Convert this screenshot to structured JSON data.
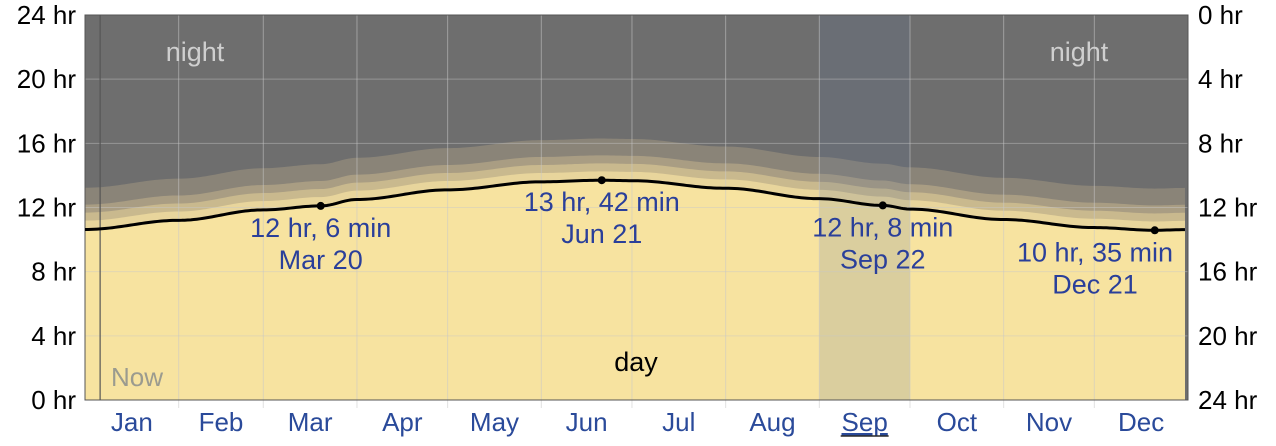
{
  "chart_data": {
    "type": "area",
    "title": "",
    "xlabel": "",
    "ylabel": "",
    "months": [
      "Jan",
      "Feb",
      "Mar",
      "Apr",
      "May",
      "Jun",
      "Jul",
      "Aug",
      "Sep",
      "Oct",
      "Nov",
      "Dec"
    ],
    "highlighted_month": "Sep",
    "ylim": [
      0,
      24
    ],
    "left_ticks": [
      "0 hr",
      "4 hr",
      "8 hr",
      "12 hr",
      "16 hr",
      "20 hr",
      "24 hr"
    ],
    "left_tick_values": [
      0,
      4,
      8,
      12,
      16,
      20,
      24
    ],
    "right_ticks": [
      "24 hr",
      "20 hr",
      "16 hr",
      "12 hr",
      "8 hr",
      "4 hr",
      "0 hr"
    ],
    "right_tick_values": [
      0,
      4,
      8,
      12,
      16,
      20,
      24
    ],
    "series": [
      {
        "day_of_year": [
          1,
          32,
          60,
          79,
          91,
          121,
          152,
          172,
          182,
          213,
          244,
          265,
          274,
          305,
          335,
          355,
          365
        ],
        "hours": [
          10.63,
          11.2,
          11.85,
          12.1,
          12.5,
          13.1,
          13.6,
          13.7,
          13.67,
          13.2,
          12.55,
          12.13,
          11.9,
          11.25,
          10.75,
          10.58,
          10.62
        ]
      }
    ],
    "twilight_band_hours": [
      0.55,
      1.05,
      1.55,
      2.6
    ],
    "annotations": [
      {
        "line1": "12 hr, 6 min",
        "line2": "Mar 20",
        "day_of_year": 79,
        "hours": 12.1
      },
      {
        "line1": "13 hr, 42 min",
        "line2": "Jun 21",
        "day_of_year": 172,
        "hours": 13.7
      },
      {
        "line1": "12 hr, 8 min",
        "line2": "Sep 22",
        "day_of_year": 265,
        "hours": 12.13
      },
      {
        "line1": "10 hr, 35 min",
        "line2": "Dec 21",
        "day_of_year": 355,
        "hours": 10.58
      }
    ],
    "band_labels": {
      "night": "night",
      "day": "day"
    },
    "now_label": "Now",
    "now_day_of_year": 6,
    "colors": {
      "night": "#6e6e6e",
      "day": "#f7e3a0",
      "twilight": [
        "#e8d59c",
        "#c9b98e",
        "#a99d83",
        "#8a8478"
      ],
      "line": "#000000",
      "grid": "#c8c8c8",
      "month_text": "#2a4a9a",
      "annotation_text": "#2a3f9a",
      "highlight_overlay": "rgba(90,110,150,0.18)"
    }
  }
}
